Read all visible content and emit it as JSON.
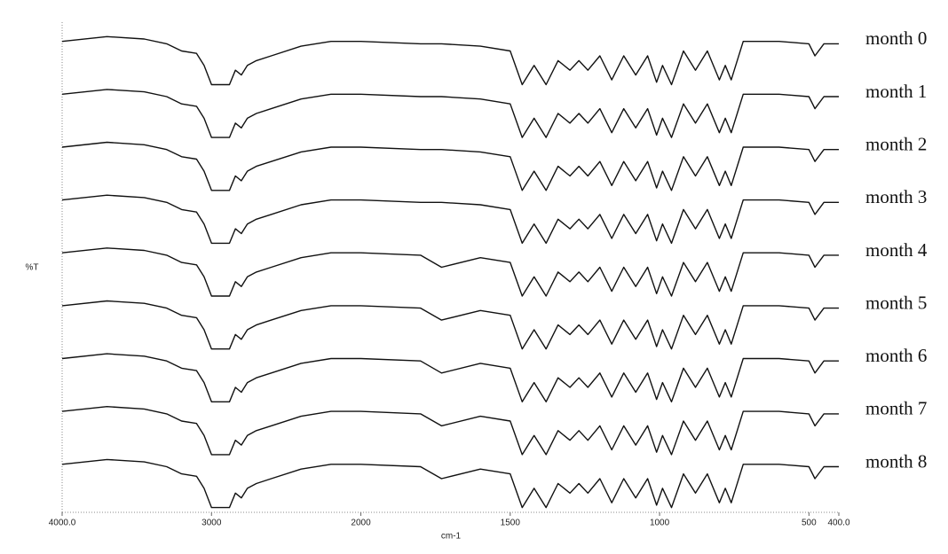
{
  "chart_data": {
    "type": "line",
    "xlabel": "cm-1",
    "ylabel": "%T",
    "x": [
      4000,
      3700,
      3450,
      3300,
      3200,
      3100,
      3050,
      3000,
      2880,
      2840,
      2800,
      2760,
      2700,
      2600,
      2400,
      2200,
      2000,
      1800,
      1730,
      1600,
      1500,
      1460,
      1420,
      1380,
      1340,
      1300,
      1270,
      1240,
      1200,
      1160,
      1120,
      1080,
      1040,
      1010,
      990,
      960,
      920,
      880,
      840,
      800,
      780,
      760,
      720,
      600,
      500,
      480,
      450,
      400
    ],
    "xlim": [
      4000,
      400
    ],
    "xscale": {
      "break": 2000,
      "factor": 2
    },
    "xticks": [
      {
        "value": 4000,
        "label": "4000.0"
      },
      3000,
      2000,
      1500,
      1000,
      500,
      {
        "value": 400,
        "label": "400.0"
      }
    ],
    "ylim": [
      -2,
      100
    ],
    "color": "#111111",
    "series": [
      {
        "name": "month 0",
        "values": [
          96,
          97,
          96.5,
          95.5,
          94,
          93.5,
          91,
          87,
          87,
          90,
          89,
          91,
          92,
          93,
          95,
          96,
          96,
          95.5,
          95.5,
          95,
          94,
          87,
          91,
          87,
          92,
          90,
          92,
          90,
          93,
          88,
          93,
          89,
          93,
          87.5,
          91,
          87,
          94,
          90,
          94,
          88,
          91,
          88,
          96,
          96,
          95.5,
          93,
          95.5,
          95.5
        ]
      },
      {
        "name": "month 1",
        "values": [
          85,
          86,
          85.5,
          84.5,
          83,
          82.5,
          80,
          76,
          76,
          79,
          78,
          80,
          81,
          82,
          84,
          85,
          85,
          84.5,
          84.5,
          84,
          83,
          76,
          80,
          76,
          81,
          79,
          81,
          79,
          82,
          77,
          82,
          78,
          82,
          76.5,
          80,
          76,
          83,
          79,
          83,
          77,
          80,
          77,
          85,
          85,
          84.5,
          82,
          84.5,
          84.5
        ]
      },
      {
        "name": "month 2",
        "values": [
          74,
          75,
          74.5,
          73.5,
          72,
          71.5,
          69,
          65,
          65,
          68,
          67,
          69,
          70,
          71,
          73,
          74,
          74,
          73.5,
          73.5,
          73,
          72,
          65,
          69,
          65,
          70,
          68,
          70,
          68,
          71,
          66,
          71,
          67,
          71,
          65.5,
          69,
          65,
          72,
          68,
          72,
          66,
          69,
          66,
          74,
          74,
          73.5,
          71,
          73.5,
          73.5
        ]
      },
      {
        "name": "month 3",
        "values": [
          63,
          64,
          63.5,
          62.5,
          61,
          60.5,
          58,
          54,
          54,
          57,
          56,
          58,
          59,
          60,
          62,
          63,
          63,
          62.5,
          62.5,
          62,
          61,
          54,
          58,
          54,
          59,
          57,
          59,
          57,
          60,
          55,
          60,
          56,
          60,
          54.5,
          58,
          54,
          61,
          57,
          61,
          55,
          58,
          55,
          63,
          63,
          62.5,
          60,
          62.5,
          62.5
        ]
      },
      {
        "name": "month 4",
        "values": [
          52,
          53,
          52.5,
          51.5,
          50,
          49.5,
          47,
          43,
          43,
          46,
          45,
          47,
          48,
          49,
          51,
          52,
          52,
          51.5,
          49,
          51,
          50,
          43,
          47,
          43,
          48,
          46,
          48,
          46,
          49,
          44,
          49,
          45,
          49,
          43.5,
          47,
          43,
          50,
          46,
          50,
          44,
          47,
          44,
          52,
          52,
          51.5,
          49,
          51.5,
          51.5
        ]
      },
      {
        "name": "month 5",
        "values": [
          41,
          42,
          41.5,
          40.5,
          39,
          38.5,
          36,
          32,
          32,
          35,
          34,
          36,
          37,
          38,
          40,
          41,
          41,
          40.5,
          38,
          40,
          39,
          32,
          36,
          32,
          37,
          35,
          37,
          35,
          38,
          33,
          38,
          34,
          38,
          32.5,
          36,
          32,
          39,
          35,
          39,
          33,
          36,
          33,
          41,
          41,
          40.5,
          38,
          40.5,
          40.5
        ]
      },
      {
        "name": "month 6",
        "values": [
          30,
          31,
          30.5,
          29.5,
          28,
          27.5,
          25,
          21,
          21,
          24,
          23,
          25,
          26,
          27,
          29,
          30,
          30,
          29.5,
          27,
          29,
          28,
          21,
          25,
          21,
          26,
          24,
          26,
          24,
          27,
          22,
          27,
          23,
          27,
          21.5,
          25,
          21,
          28,
          24,
          28,
          22,
          25,
          22,
          30,
          30,
          29.5,
          27,
          29.5,
          29.5
        ]
      },
      {
        "name": "month 7",
        "values": [
          19,
          20,
          19.5,
          18.5,
          17,
          16.5,
          14,
          10,
          10,
          13,
          12,
          14,
          15,
          16,
          18,
          19,
          19,
          18.5,
          16,
          18,
          17,
          10,
          14,
          10,
          15,
          13,
          15,
          13,
          16,
          11,
          16,
          12,
          16,
          10.5,
          14,
          10,
          17,
          13,
          17,
          11,
          14,
          11,
          19,
          19,
          18.5,
          16,
          18.5,
          18.5
        ]
      },
      {
        "name": "month 8",
        "values": [
          8,
          9,
          8.5,
          7.5,
          6,
          5.5,
          3,
          -1,
          -1,
          2,
          1,
          3,
          4,
          5,
          7,
          8,
          8,
          7.5,
          5,
          7,
          6,
          -1,
          3,
          -1,
          4,
          2,
          4,
          2,
          5,
          0,
          5,
          1,
          5,
          -0.5,
          3,
          -1,
          6,
          2,
          6,
          0,
          3,
          0,
          8,
          8,
          7.5,
          5,
          7.5,
          7.5
        ]
      }
    ]
  }
}
